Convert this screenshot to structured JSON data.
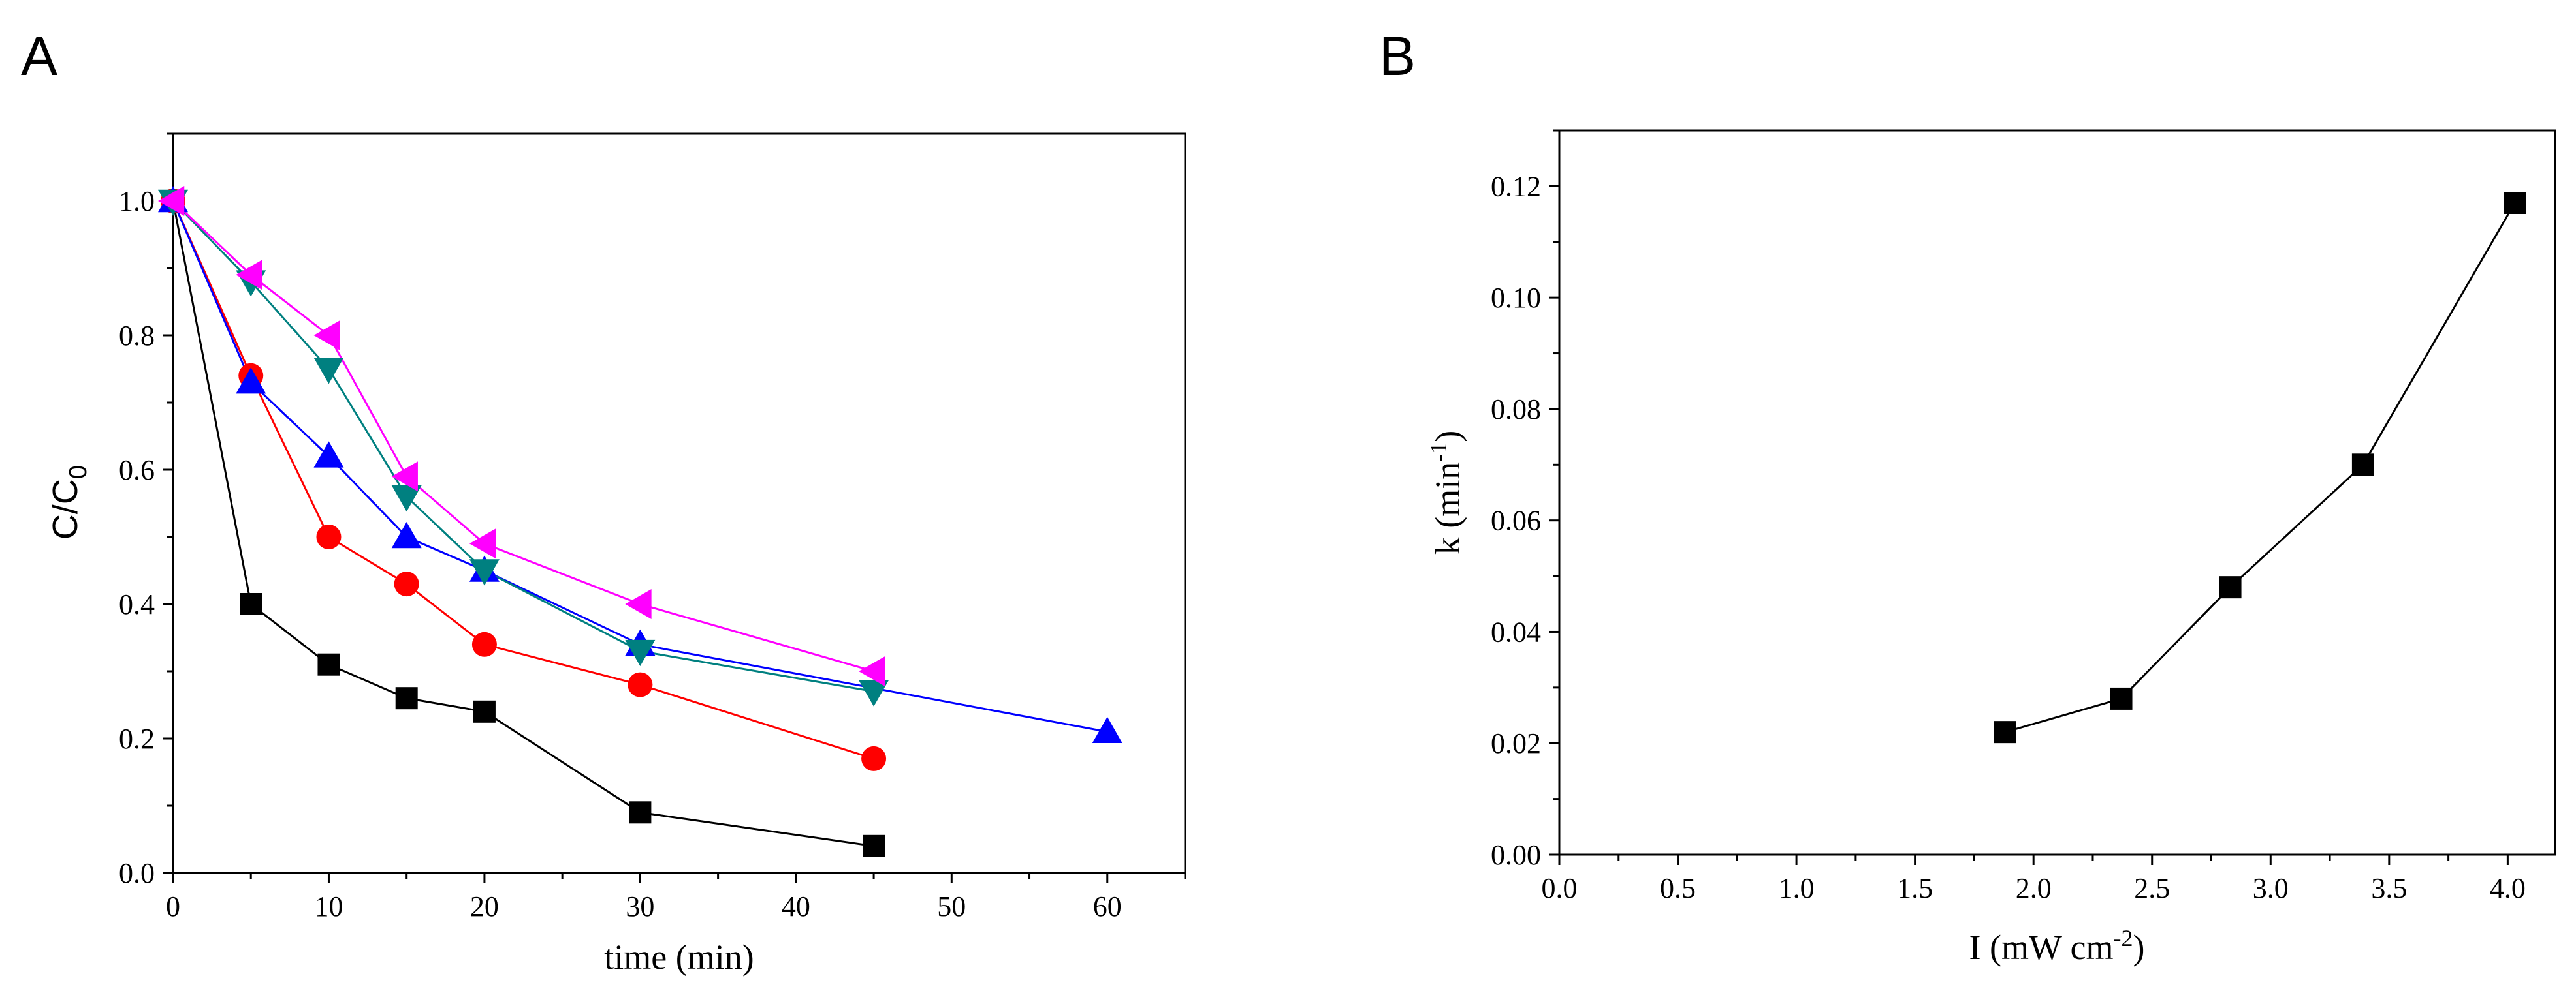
{
  "chart_data": [
    {
      "panel": "A",
      "type": "line",
      "xlabel": "time (min)",
      "ylabel_main": "C/C",
      "ylabel_sub": "0",
      "xlim": [
        0,
        65
      ],
      "ylim": [
        0,
        1.1
      ],
      "xticks": [
        0,
        10,
        20,
        30,
        40,
        50,
        60
      ],
      "xtick_labels": [
        "0",
        "10",
        "20",
        "30",
        "40",
        "50",
        "60"
      ],
      "yticks": [
        0,
        0.2,
        0.4,
        0.6,
        0.8,
        1.0
      ],
      "ytick_labels": [
        "0.0",
        "0.2",
        "0.4",
        "0.6",
        "0.8",
        "1.0"
      ],
      "series": [
        {
          "name": "black-squares",
          "color": "#000000",
          "marker": "square",
          "x": [
            0,
            5,
            10,
            15,
            20,
            30,
            45
          ],
          "y": [
            1.0,
            0.4,
            0.31,
            0.26,
            0.24,
            0.09,
            0.04
          ]
        },
        {
          "name": "red-circles",
          "color": "#ff0000",
          "marker": "circle",
          "x": [
            0,
            5,
            10,
            15,
            20,
            30,
            45
          ],
          "y": [
            1.0,
            0.74,
            0.5,
            0.43,
            0.34,
            0.28,
            0.17
          ]
        },
        {
          "name": "blue-triangles",
          "color": "#0000ff",
          "marker": "triangle-up",
          "x": [
            0,
            5,
            10,
            15,
            20,
            30,
            60
          ],
          "y": [
            1.0,
            0.73,
            0.62,
            0.5,
            0.45,
            0.34,
            0.21
          ]
        },
        {
          "name": "teal-triangles-down",
          "color": "#008080",
          "marker": "triangle-down",
          "x": [
            0,
            5,
            10,
            15,
            20,
            30,
            45
          ],
          "y": [
            1.0,
            0.88,
            0.75,
            0.56,
            0.45,
            0.33,
            0.27
          ]
        },
        {
          "name": "magenta-triangles-left",
          "color": "#ff00ff",
          "marker": "triangle-left",
          "x": [
            0,
            5,
            10,
            15,
            20,
            30,
            45
          ],
          "y": [
            1.0,
            0.89,
            0.8,
            0.59,
            0.49,
            0.4,
            0.3
          ]
        }
      ]
    },
    {
      "panel": "B",
      "type": "line",
      "xlabel_main": "I (mW cm",
      "xlabel_sup": "-2",
      "xlabel_end": ")",
      "ylabel_main": "k (min",
      "ylabel_sup": "-1",
      "ylabel_end": ")",
      "xlim": [
        0,
        4.2
      ],
      "ylim": [
        0,
        0.13
      ],
      "xticks": [
        0,
        0.5,
        1.0,
        1.5,
        2.0,
        2.5,
        3.0,
        3.5,
        4.0
      ],
      "xtick_labels": [
        "0.0",
        "0.5",
        "1.0",
        "1.5",
        "2.0",
        "2.5",
        "3.0",
        "3.5",
        "4.0"
      ],
      "yticks": [
        0,
        0.02,
        0.04,
        0.06,
        0.08,
        0.1,
        0.12
      ],
      "ytick_labels": [
        "0.00",
        "0.02",
        "0.04",
        "0.06",
        "0.08",
        "0.10",
        "0.12"
      ],
      "series": [
        {
          "name": "k-vs-intensity",
          "color": "#000000",
          "marker": "square",
          "x": [
            1.88,
            2.37,
            2.83,
            3.39,
            4.03
          ],
          "y": [
            0.022,
            0.028,
            0.048,
            0.07,
            0.117
          ]
        }
      ]
    }
  ],
  "panel_labels": {
    "a": "A",
    "b": "B"
  }
}
